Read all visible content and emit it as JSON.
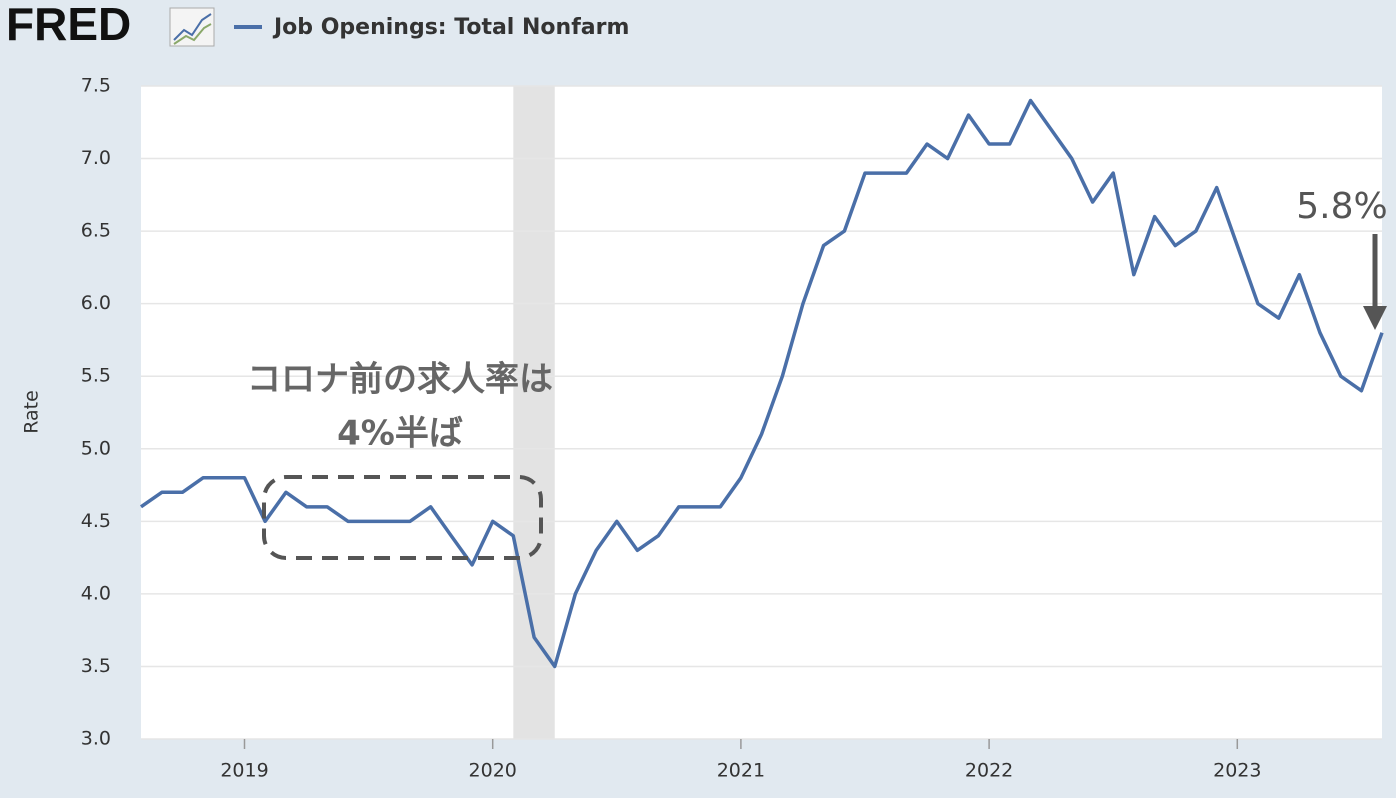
{
  "chart_data": {
    "type": "line",
    "logo": "FRED",
    "ylabel": "Rate",
    "series": [
      {
        "name": "Job Openings: Total Nonfarm",
        "color": "#4a6fa8",
        "values": [
          4.6,
          4.7,
          4.7,
          4.8,
          4.8,
          4.8,
          4.5,
          4.7,
          4.6,
          4.6,
          4.5,
          4.5,
          4.5,
          4.5,
          4.6,
          4.4,
          4.2,
          4.5,
          4.4,
          3.7,
          3.5,
          4.0,
          4.3,
          4.5,
          4.3,
          4.4,
          4.6,
          4.6,
          4.6,
          4.8,
          5.1,
          5.5,
          6.0,
          6.4,
          6.5,
          6.9,
          6.9,
          6.9,
          7.1,
          7.0,
          7.3,
          7.1,
          7.1,
          7.4,
          7.2,
          7.0,
          6.7,
          6.9,
          6.2,
          6.6,
          6.4,
          6.5,
          6.8,
          6.4,
          6.0,
          5.9,
          6.2,
          5.8,
          5.5,
          5.4,
          5.8
        ]
      }
    ],
    "x": [
      2018.583,
      2018.667,
      2018.75,
      2018.833,
      2018.917,
      2019,
      2019.083,
      2019.167,
      2019.25,
      2019.333,
      2019.417,
      2019.5,
      2019.583,
      2019.667,
      2019.75,
      2019.833,
      2019.917,
      2020,
      2020.083,
      2020.167,
      2020.25,
      2020.333,
      2020.417,
      2020.5,
      2020.583,
      2020.667,
      2020.75,
      2020.833,
      2020.917,
      2021,
      2021.083,
      2021.167,
      2021.25,
      2021.333,
      2021.417,
      2021.5,
      2021.583,
      2021.667,
      2021.75,
      2021.833,
      2021.917,
      2022,
      2022.083,
      2022.167,
      2022.25,
      2022.333,
      2022.417,
      2022.5,
      2022.583,
      2022.667,
      2022.75,
      2022.833,
      2022.917,
      2023,
      2023.083,
      2023.167,
      2023.25,
      2023.333,
      2023.417,
      2023.5,
      2023.583
    ],
    "xlim": [
      2018.583,
      2023.583
    ],
    "xticks": [
      2019,
      2020,
      2021,
      2022,
      2023
    ],
    "ylim": [
      3.0,
      7.5
    ],
    "yticks": [
      {
        "value": 3,
        "label": "3.0"
      },
      {
        "value": 3.5,
        "label": "3.5"
      },
      {
        "value": 4,
        "label": "4.0"
      },
      {
        "value": 4.5,
        "label": "4.5"
      },
      {
        "value": 5,
        "label": "5.0"
      },
      {
        "value": 5.5,
        "label": "5.5"
      },
      {
        "value": 6,
        "label": "6.0"
      },
      {
        "value": 6.5,
        "label": "6.5"
      },
      {
        "value": 7,
        "label": "7.0"
      },
      {
        "value": 7.5,
        "label": "7.5"
      }
    ],
    "grid": true,
    "recessions": [
      [
        2020.083,
        2020.25
      ]
    ],
    "annotations": [
      "コロナ前の求人率は",
      "4%半ば",
      "5.8%"
    ]
  }
}
